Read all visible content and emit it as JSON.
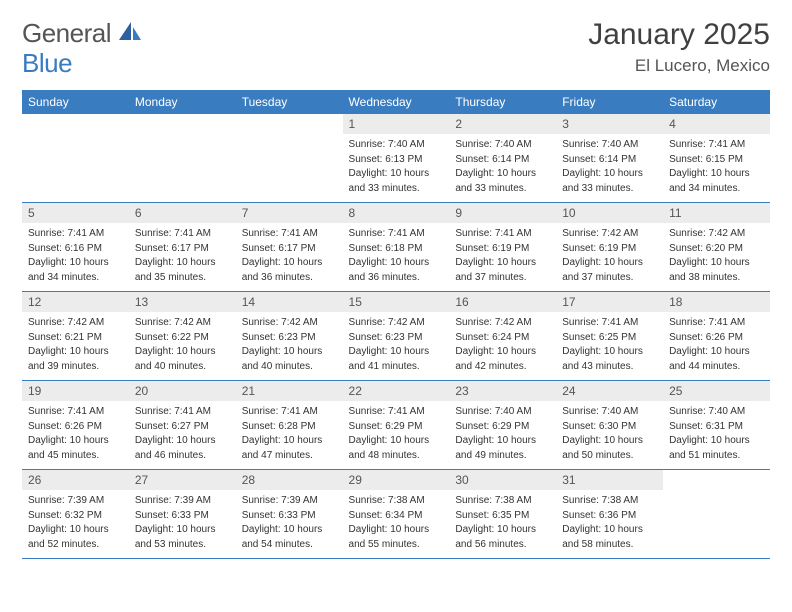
{
  "logo": {
    "text1": "General",
    "text2": "Blue"
  },
  "title": "January 2025",
  "location": "El Lucero, Mexico",
  "colors": {
    "header_bg": "#3a7cc0",
    "header_text": "#ffffff",
    "daynum_bg": "#ececec",
    "daynum_text": "#555555",
    "border": "#3a7cc0",
    "body_text": "#333333",
    "title_text": "#404040"
  },
  "day_headers": [
    "Sunday",
    "Monday",
    "Tuesday",
    "Wednesday",
    "Thursday",
    "Friday",
    "Saturday"
  ],
  "weeks": [
    [
      null,
      null,
      null,
      {
        "n": "1",
        "sr": "Sunrise: 7:40 AM",
        "ss": "Sunset: 6:13 PM",
        "dl1": "Daylight: 10 hours",
        "dl2": "and 33 minutes."
      },
      {
        "n": "2",
        "sr": "Sunrise: 7:40 AM",
        "ss": "Sunset: 6:14 PM",
        "dl1": "Daylight: 10 hours",
        "dl2": "and 33 minutes."
      },
      {
        "n": "3",
        "sr": "Sunrise: 7:40 AM",
        "ss": "Sunset: 6:14 PM",
        "dl1": "Daylight: 10 hours",
        "dl2": "and 33 minutes."
      },
      {
        "n": "4",
        "sr": "Sunrise: 7:41 AM",
        "ss": "Sunset: 6:15 PM",
        "dl1": "Daylight: 10 hours",
        "dl2": "and 34 minutes."
      }
    ],
    [
      {
        "n": "5",
        "sr": "Sunrise: 7:41 AM",
        "ss": "Sunset: 6:16 PM",
        "dl1": "Daylight: 10 hours",
        "dl2": "and 34 minutes."
      },
      {
        "n": "6",
        "sr": "Sunrise: 7:41 AM",
        "ss": "Sunset: 6:17 PM",
        "dl1": "Daylight: 10 hours",
        "dl2": "and 35 minutes."
      },
      {
        "n": "7",
        "sr": "Sunrise: 7:41 AM",
        "ss": "Sunset: 6:17 PM",
        "dl1": "Daylight: 10 hours",
        "dl2": "and 36 minutes."
      },
      {
        "n": "8",
        "sr": "Sunrise: 7:41 AM",
        "ss": "Sunset: 6:18 PM",
        "dl1": "Daylight: 10 hours",
        "dl2": "and 36 minutes."
      },
      {
        "n": "9",
        "sr": "Sunrise: 7:41 AM",
        "ss": "Sunset: 6:19 PM",
        "dl1": "Daylight: 10 hours",
        "dl2": "and 37 minutes."
      },
      {
        "n": "10",
        "sr": "Sunrise: 7:42 AM",
        "ss": "Sunset: 6:19 PM",
        "dl1": "Daylight: 10 hours",
        "dl2": "and 37 minutes."
      },
      {
        "n": "11",
        "sr": "Sunrise: 7:42 AM",
        "ss": "Sunset: 6:20 PM",
        "dl1": "Daylight: 10 hours",
        "dl2": "and 38 minutes."
      }
    ],
    [
      {
        "n": "12",
        "sr": "Sunrise: 7:42 AM",
        "ss": "Sunset: 6:21 PM",
        "dl1": "Daylight: 10 hours",
        "dl2": "and 39 minutes."
      },
      {
        "n": "13",
        "sr": "Sunrise: 7:42 AM",
        "ss": "Sunset: 6:22 PM",
        "dl1": "Daylight: 10 hours",
        "dl2": "and 40 minutes."
      },
      {
        "n": "14",
        "sr": "Sunrise: 7:42 AM",
        "ss": "Sunset: 6:23 PM",
        "dl1": "Daylight: 10 hours",
        "dl2": "and 40 minutes."
      },
      {
        "n": "15",
        "sr": "Sunrise: 7:42 AM",
        "ss": "Sunset: 6:23 PM",
        "dl1": "Daylight: 10 hours",
        "dl2": "and 41 minutes."
      },
      {
        "n": "16",
        "sr": "Sunrise: 7:42 AM",
        "ss": "Sunset: 6:24 PM",
        "dl1": "Daylight: 10 hours",
        "dl2": "and 42 minutes."
      },
      {
        "n": "17",
        "sr": "Sunrise: 7:41 AM",
        "ss": "Sunset: 6:25 PM",
        "dl1": "Daylight: 10 hours",
        "dl2": "and 43 minutes."
      },
      {
        "n": "18",
        "sr": "Sunrise: 7:41 AM",
        "ss": "Sunset: 6:26 PM",
        "dl1": "Daylight: 10 hours",
        "dl2": "and 44 minutes."
      }
    ],
    [
      {
        "n": "19",
        "sr": "Sunrise: 7:41 AM",
        "ss": "Sunset: 6:26 PM",
        "dl1": "Daylight: 10 hours",
        "dl2": "and 45 minutes."
      },
      {
        "n": "20",
        "sr": "Sunrise: 7:41 AM",
        "ss": "Sunset: 6:27 PM",
        "dl1": "Daylight: 10 hours",
        "dl2": "and 46 minutes."
      },
      {
        "n": "21",
        "sr": "Sunrise: 7:41 AM",
        "ss": "Sunset: 6:28 PM",
        "dl1": "Daylight: 10 hours",
        "dl2": "and 47 minutes."
      },
      {
        "n": "22",
        "sr": "Sunrise: 7:41 AM",
        "ss": "Sunset: 6:29 PM",
        "dl1": "Daylight: 10 hours",
        "dl2": "and 48 minutes."
      },
      {
        "n": "23",
        "sr": "Sunrise: 7:40 AM",
        "ss": "Sunset: 6:29 PM",
        "dl1": "Daylight: 10 hours",
        "dl2": "and 49 minutes."
      },
      {
        "n": "24",
        "sr": "Sunrise: 7:40 AM",
        "ss": "Sunset: 6:30 PM",
        "dl1": "Daylight: 10 hours",
        "dl2": "and 50 minutes."
      },
      {
        "n": "25",
        "sr": "Sunrise: 7:40 AM",
        "ss": "Sunset: 6:31 PM",
        "dl1": "Daylight: 10 hours",
        "dl2": "and 51 minutes."
      }
    ],
    [
      {
        "n": "26",
        "sr": "Sunrise: 7:39 AM",
        "ss": "Sunset: 6:32 PM",
        "dl1": "Daylight: 10 hours",
        "dl2": "and 52 minutes."
      },
      {
        "n": "27",
        "sr": "Sunrise: 7:39 AM",
        "ss": "Sunset: 6:33 PM",
        "dl1": "Daylight: 10 hours",
        "dl2": "and 53 minutes."
      },
      {
        "n": "28",
        "sr": "Sunrise: 7:39 AM",
        "ss": "Sunset: 6:33 PM",
        "dl1": "Daylight: 10 hours",
        "dl2": "and 54 minutes."
      },
      {
        "n": "29",
        "sr": "Sunrise: 7:38 AM",
        "ss": "Sunset: 6:34 PM",
        "dl1": "Daylight: 10 hours",
        "dl2": "and 55 minutes."
      },
      {
        "n": "30",
        "sr": "Sunrise: 7:38 AM",
        "ss": "Sunset: 6:35 PM",
        "dl1": "Daylight: 10 hours",
        "dl2": "and 56 minutes."
      },
      {
        "n": "31",
        "sr": "Sunrise: 7:38 AM",
        "ss": "Sunset: 6:36 PM",
        "dl1": "Daylight: 10 hours",
        "dl2": "and 58 minutes."
      },
      null
    ]
  ]
}
